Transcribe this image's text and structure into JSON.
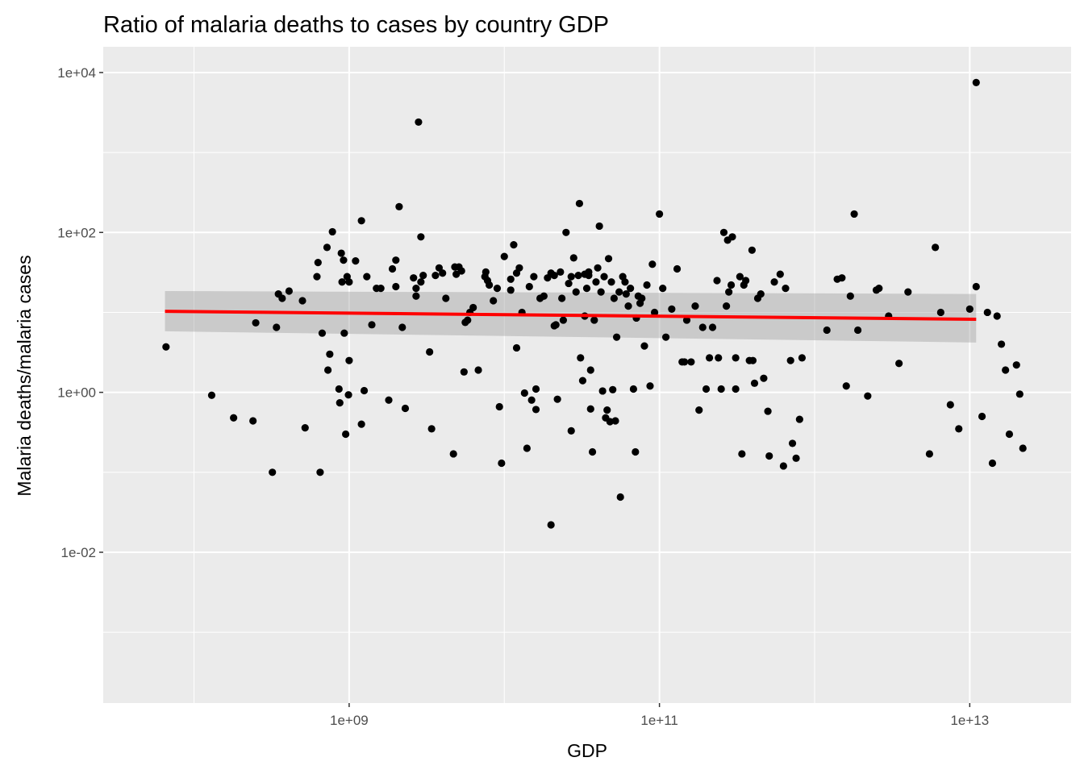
{
  "chart_data": {
    "type": "scatter",
    "title": "Ratio of malaria deaths to cases by country GDP",
    "xlabel": "GDP",
    "ylabel": "Malaria deaths/malaria cases",
    "x_scale": "log10",
    "y_scale": "log10",
    "xlim": [
      26000000.0,
      45000000000000.0
    ],
    "ylim": [
      0.00013,
      21000
    ],
    "x_ticks": [
      {
        "value": 1000000000.0,
        "label": "1e+09"
      },
      {
        "value": 100000000000.0,
        "label": "1e+11"
      },
      {
        "value": 10000000000000.0,
        "label": "1e+13"
      }
    ],
    "y_ticks": [
      {
        "value": 0.01,
        "label": "1e-02"
      },
      {
        "value": 1,
        "label": "1e+00"
      },
      {
        "value": 100,
        "label": "1e+02"
      },
      {
        "value": 10000,
        "label": "1e+04"
      }
    ],
    "grid": true,
    "colors": {
      "panel": "#ebebeb",
      "grid": "#ffffff",
      "points": "#000000",
      "trend_line": "#ff0000",
      "ribbon": "#999999"
    },
    "trend": {
      "method": "linear",
      "x": [
        65000000.0,
        11000000000000.0
      ],
      "y": [
        10.3,
        8.2
      ],
      "ribbon_low": [
        5.8,
        4.2
      ],
      "ribbon_high": [
        18.5,
        17.0
      ]
    },
    "points": [
      [
        66000000.0,
        3.7
      ],
      [
        130000000.0,
        0.92
      ],
      [
        180000000.0,
        0.48
      ],
      [
        240000000.0,
        0.44
      ],
      [
        250000000.0,
        7.4
      ],
      [
        320000000.0,
        0.1
      ],
      [
        340000000.0,
        6.5
      ],
      [
        350000000.0,
        17
      ],
      [
        370000000.0,
        15
      ],
      [
        410000000.0,
        18.5
      ],
      [
        500000000.0,
        14
      ],
      [
        520000000.0,
        0.36
      ],
      [
        620000000.0,
        28
      ],
      [
        630000000.0,
        42
      ],
      [
        650000000.0,
        0.1
      ],
      [
        670000000.0,
        5.5
      ],
      [
        720000000.0,
        65
      ],
      [
        730000000.0,
        1.9
      ],
      [
        750000000.0,
        3
      ],
      [
        780000000.0,
        102
      ],
      [
        860000000.0,
        1.1
      ],
      [
        870000000.0,
        0.74
      ],
      [
        890000000.0,
        55
      ],
      [
        900000000.0,
        24
      ],
      [
        920000000.0,
        45
      ],
      [
        930000000.0,
        5.5
      ],
      [
        950000000.0,
        0.3
      ],
      [
        970000000.0,
        28
      ],
      [
        990000000.0,
        0.93
      ],
      [
        1000000000.0,
        24
      ],
      [
        1000000000.0,
        2.5
      ],
      [
        1100000000.0,
        44
      ],
      [
        1200000000.0,
        140
      ],
      [
        1200000000.0,
        0.4
      ],
      [
        1250000000.0,
        1.05
      ],
      [
        1300000000.0,
        28
      ],
      [
        1400000000.0,
        7
      ],
      [
        1500000000.0,
        20
      ],
      [
        1600000000.0,
        20
      ],
      [
        1800000000.0,
        0.8
      ],
      [
        1900000000.0,
        35
      ],
      [
        2000000000.0,
        45
      ],
      [
        2000000000.0,
        21
      ],
      [
        2100000000.0,
        210
      ],
      [
        2200000000.0,
        6.5
      ],
      [
        2300000000.0,
        0.63
      ],
      [
        2600000000.0,
        27
      ],
      [
        2700000000.0,
        20
      ],
      [
        2700000000.0,
        16
      ],
      [
        2800000000.0,
        2400
      ],
      [
        2900000000.0,
        24
      ],
      [
        2900000000.0,
        88
      ],
      [
        3000000000.0,
        29
      ],
      [
        3300000000.0,
        3.2
      ],
      [
        3400000000.0,
        0.35
      ],
      [
        3600000000.0,
        29
      ],
      [
        3800000000.0,
        36
      ],
      [
        4000000000.0,
        31
      ],
      [
        4200000000.0,
        15
      ],
      [
        4700000000.0,
        0.17
      ],
      [
        4800000000.0,
        37
      ],
      [
        4900000000.0,
        30
      ],
      [
        5100000000.0,
        37
      ],
      [
        5300000000.0,
        33
      ],
      [
        5500000000.0,
        1.8
      ],
      [
        5600000000.0,
        7.5
      ],
      [
        5800000000.0,
        8
      ],
      [
        6000000000.0,
        10
      ],
      [
        6300000000.0,
        11.5
      ],
      [
        6800000000.0,
        1.9
      ],
      [
        7500000000.0,
        28
      ],
      [
        7600000000.0,
        32
      ],
      [
        7800000000.0,
        25
      ],
      [
        8000000000.0,
        22
      ],
      [
        8500000000.0,
        14
      ],
      [
        9000000000.0,
        20
      ],
      [
        9300000000.0,
        0.66
      ],
      [
        9600000000.0,
        0.13
      ],
      [
        10000000000.0,
        50
      ],
      [
        11000000000.0,
        19
      ],
      [
        11000000000.0,
        26
      ],
      [
        11500000000.0,
        70
      ],
      [
        12000000000.0,
        31
      ],
      [
        12000000000.0,
        3.6
      ],
      [
        12500000000.0,
        36
      ],
      [
        13000000000.0,
        10
      ],
      [
        13500000000.0,
        0.98
      ],
      [
        14000000000.0,
        0.2
      ],
      [
        14500000000.0,
        21
      ],
      [
        15000000000.0,
        0.8
      ],
      [
        15500000000.0,
        28
      ],
      [
        16000000000.0,
        0.61
      ],
      [
        16000000000.0,
        1.1
      ],
      [
        17000000000.0,
        15
      ],
      [
        18000000000.0,
        16
      ],
      [
        19000000000.0,
        27
      ],
      [
        20000000000.0,
        0.022
      ],
      [
        20000000000.0,
        31
      ],
      [
        21000000000.0,
        29
      ],
      [
        21000000000.0,
        6.8
      ],
      [
        21500000000.0,
        7
      ],
      [
        22000000000.0,
        0.82
      ],
      [
        23000000000.0,
        32
      ],
      [
        23500000000.0,
        15
      ],
      [
        24000000000.0,
        8
      ],
      [
        25000000000.0,
        100
      ],
      [
        26000000000.0,
        23
      ],
      [
        27000000000.0,
        28
      ],
      [
        27000000000.0,
        0.33
      ],
      [
        28000000000.0,
        48
      ],
      [
        29000000000.0,
        18
      ],
      [
        30000000000.0,
        29
      ],
      [
        30500000000.0,
        230
      ],
      [
        31000000000.0,
        2.7
      ],
      [
        32000000000.0,
        1.4
      ],
      [
        33000000000.0,
        9
      ],
      [
        33000000000.0,
        30
      ],
      [
        34000000000.0,
        20
      ],
      [
        35000000000.0,
        32
      ],
      [
        35000000000.0,
        29
      ],
      [
        36000000000.0,
        0.62
      ],
      [
        36000000000.0,
        1.9
      ],
      [
        37000000000.0,
        0.18
      ],
      [
        38000000000.0,
        8
      ],
      [
        39000000000.0,
        24
      ],
      [
        40000000000.0,
        36
      ],
      [
        41000000000.0,
        120
      ],
      [
        42000000000.0,
        18
      ],
      [
        43000000000.0,
        1.04
      ],
      [
        44000000000.0,
        28
      ],
      [
        45000000000.0,
        0.48
      ],
      [
        46000000000.0,
        0.6
      ],
      [
        47000000000.0,
        47
      ],
      [
        48000000000.0,
        0.43
      ],
      [
        49000000000.0,
        24
      ],
      [
        50000000000.0,
        1.08
      ],
      [
        51000000000.0,
        15
      ],
      [
        52000000000.0,
        0.44
      ],
      [
        53000000000.0,
        4.9
      ],
      [
        55000000000.0,
        18
      ],
      [
        56000000000.0,
        0.049
      ],
      [
        58000000000.0,
        28
      ],
      [
        60000000000.0,
        24
      ],
      [
        61000000000.0,
        17
      ],
      [
        63000000000.0,
        12
      ],
      [
        65000000000.0,
        20
      ],
      [
        68000000000.0,
        1.1
      ],
      [
        70000000000.0,
        0.18
      ],
      [
        71000000000.0,
        8.5
      ],
      [
        73000000000.0,
        16
      ],
      [
        75000000000.0,
        13
      ],
      [
        77000000000.0,
        15
      ],
      [
        80000000000.0,
        3.8
      ],
      [
        83000000000.0,
        22
      ],
      [
        87000000000.0,
        1.2
      ],
      [
        90000000000.0,
        40
      ],
      [
        93000000000.0,
        10
      ],
      [
        100000000000.0,
        170
      ],
      [
        105000000000.0,
        20
      ],
      [
        110000000000.0,
        4.9
      ],
      [
        120000000000.0,
        11
      ],
      [
        130000000000.0,
        35
      ],
      [
        140000000000.0,
        2.4
      ],
      [
        145000000000.0,
        2.4
      ],
      [
        150000000000.0,
        8
      ],
      [
        160000000000.0,
        2.4
      ],
      [
        170000000000.0,
        12
      ],
      [
        180000000000.0,
        0.6
      ],
      [
        190000000000.0,
        6.5
      ],
      [
        200000000000.0,
        1.1
      ],
      [
        210000000000.0,
        2.7
      ],
      [
        220000000000.0,
        6.5
      ],
      [
        235000000000.0,
        25
      ],
      [
        240000000000.0,
        2.7
      ],
      [
        250000000000.0,
        1.1
      ],
      [
        260000000000.0,
        100
      ],
      [
        270000000000.0,
        12
      ],
      [
        275000000000.0,
        80
      ],
      [
        280000000000.0,
        18
      ],
      [
        290000000000.0,
        22
      ],
      [
        295000000000.0,
        88
      ],
      [
        310000000000.0,
        2.7
      ],
      [
        310000000000.0,
        1.1
      ],
      [
        330000000000.0,
        28
      ],
      [
        340000000000.0,
        0.17
      ],
      [
        350000000000.0,
        22
      ],
      [
        360000000000.0,
        25
      ],
      [
        380000000000.0,
        2.5
      ],
      [
        395000000000.0,
        60
      ],
      [
        400000000000.0,
        2.5
      ],
      [
        410000000000.0,
        1.3
      ],
      [
        430000000000.0,
        15
      ],
      [
        450000000000.0,
        17
      ],
      [
        470000000000.0,
        1.5
      ],
      [
        500000000000.0,
        0.58
      ],
      [
        510000000000.0,
        0.16
      ],
      [
        550000000000.0,
        24
      ],
      [
        600000000000.0,
        30
      ],
      [
        630000000000.0,
        0.12
      ],
      [
        650000000000.0,
        20
      ],
      [
        700000000000.0,
        2.5
      ],
      [
        720000000000.0,
        0.23
      ],
      [
        760000000000.0,
        0.15
      ],
      [
        800000000000.0,
        0.46
      ],
      [
        830000000000.0,
        2.7
      ],
      [
        1200000000000.0,
        6
      ],
      [
        1400000000000.0,
        26
      ],
      [
        1500000000000.0,
        27
      ],
      [
        1600000000000.0,
        1.2
      ],
      [
        1700000000000.0,
        16
      ],
      [
        1800000000000.0,
        170
      ],
      [
        1900000000000.0,
        6
      ],
      [
        2200000000000.0,
        0.9
      ],
      [
        2500000000000.0,
        19
      ],
      [
        2600000000000.0,
        20
      ],
      [
        3000000000000.0,
        9
      ],
      [
        3500000000000.0,
        2.3
      ],
      [
        4000000000000.0,
        18
      ],
      [
        5500000000000.0,
        0.17
      ],
      [
        6500000000000.0,
        10
      ],
      [
        7500000000000.0,
        0.7
      ],
      [
        8500000000000.0,
        0.35
      ],
      [
        10000000000000.0,
        11
      ],
      [
        11000000000000.0,
        21
      ],
      [
        12000000000000.0,
        0.5
      ],
      [
        13000000000000.0,
        10
      ],
      [
        14000000000000.0,
        0.13
      ],
      [
        15000000000000.0,
        9
      ],
      [
        16000000000000.0,
        4
      ],
      [
        17000000000000.0,
        1.9
      ],
      [
        18000000000000.0,
        0.3
      ],
      [
        20000000000000.0,
        2.2
      ],
      [
        21000000000000.0,
        0.95
      ],
      [
        22000000000000.0,
        0.2
      ],
      [
        6000000000000.0,
        65
      ],
      [
        11000000000000.0,
        7500
      ]
    ]
  }
}
